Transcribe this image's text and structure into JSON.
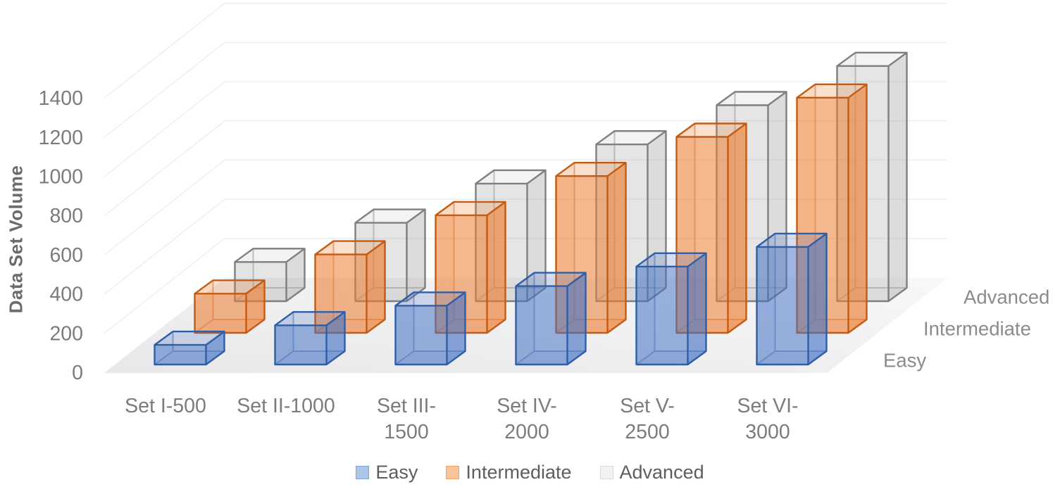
{
  "styles": {
    "background": "#FFFFFF",
    "grid_color": "#EAECED",
    "floor_front_color": "#E8E8EA",
    "floor_back_color": "#F8F8F9",
    "tick_label_color": "#7C7C7C",
    "category_label_color": "#7C7C7C",
    "depth_label_color": "#8B8B8B",
    "axis_title_color": "#6C6C6C",
    "legend_text_color": "#5E5E5E"
  },
  "chart_data": {
    "type": "bar",
    "subtype": "3d-clustered-column",
    "title": "",
    "xlabel": "",
    "ylabel": "Data Set Volume",
    "ylim": [
      0,
      1400
    ],
    "y_ticks": [
      0,
      200,
      400,
      600,
      800,
      1000,
      1200,
      1400
    ],
    "grid": true,
    "legend_position": "bottom",
    "categories": [
      "Set I-500",
      "Set II-1000",
      "Set III-1500",
      "Set IV-2000",
      "Set V-2500",
      "Set VI-3000"
    ],
    "category_label_lines": [
      [
        "Set I-500"
      ],
      [
        "Set II-1000"
      ],
      [
        "Set III-",
        "1500"
      ],
      [
        "Set IV-",
        "2000"
      ],
      [
        "Set V-",
        "2500"
      ],
      [
        "Set VI-",
        "3000"
      ]
    ],
    "series": [
      {
        "name": "Easy",
        "values": [
          100,
          200,
          300,
          400,
          500,
          600
        ],
        "fill": "#4472C4",
        "stroke": "#2E5EA8",
        "opacity": {
          "front": 0.48,
          "side": 0.58,
          "top": 0.14
        }
      },
      {
        "name": "Intermediate",
        "values": [
          200,
          400,
          600,
          800,
          1000,
          1200
        ],
        "fill": "#ED7D31",
        "stroke": "#C55A11",
        "opacity": {
          "front": 0.5,
          "side": 0.6,
          "top": 0.15
        }
      },
      {
        "name": "Advanced",
        "values": [
          200,
          400,
          600,
          800,
          1000,
          1200
        ],
        "fill": "#A5A5A5",
        "stroke": "#7F7F7F",
        "opacity": {
          "front": 0.24,
          "side": 0.36,
          "top": 0.08
        }
      }
    ],
    "depth_axis_labels": [
      "Easy",
      "Intermediate",
      "Advanced"
    ],
    "y_axis": {
      "title": "Data Set Volume"
    },
    "legend": {
      "items": [
        {
          "label": "Easy",
          "swatch_fill": "#ACC5E8",
          "swatch_border": "#7FA5D8"
        },
        {
          "label": "Intermediate",
          "swatch_fill": "#FAC49A",
          "swatch_border": "#F2A266"
        },
        {
          "label": "Advanced",
          "swatch_fill": "#F1F2F4",
          "swatch_border": "#D8DADC"
        }
      ]
    }
  }
}
